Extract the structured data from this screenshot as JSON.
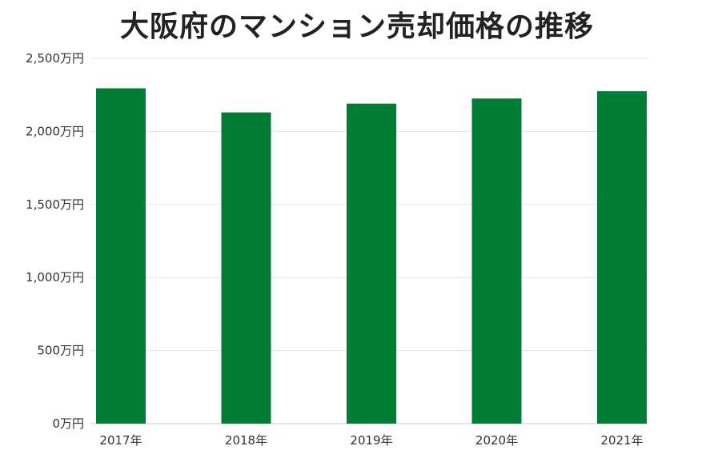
{
  "chart_data": {
    "type": "bar",
    "title": "大阪府のマンション売却価格の推移",
    "categories": [
      "2017年",
      "2018年",
      "2019年",
      "2020年",
      "2021年"
    ],
    "values": [
      2295,
      2130,
      2190,
      2225,
      2275
    ],
    "ylim": [
      0,
      2500
    ],
    "yticks": [
      0,
      500,
      1000,
      1500,
      2000,
      2500
    ],
    "ytick_labels": [
      "0万円",
      "500万円",
      "1,000万円",
      "1,500万円",
      "2,000万円",
      "2,500万円"
    ],
    "grid": true,
    "colors": {
      "bar": "#007c35",
      "grid": "#e3e3e3",
      "axis": "#cccccc"
    }
  }
}
